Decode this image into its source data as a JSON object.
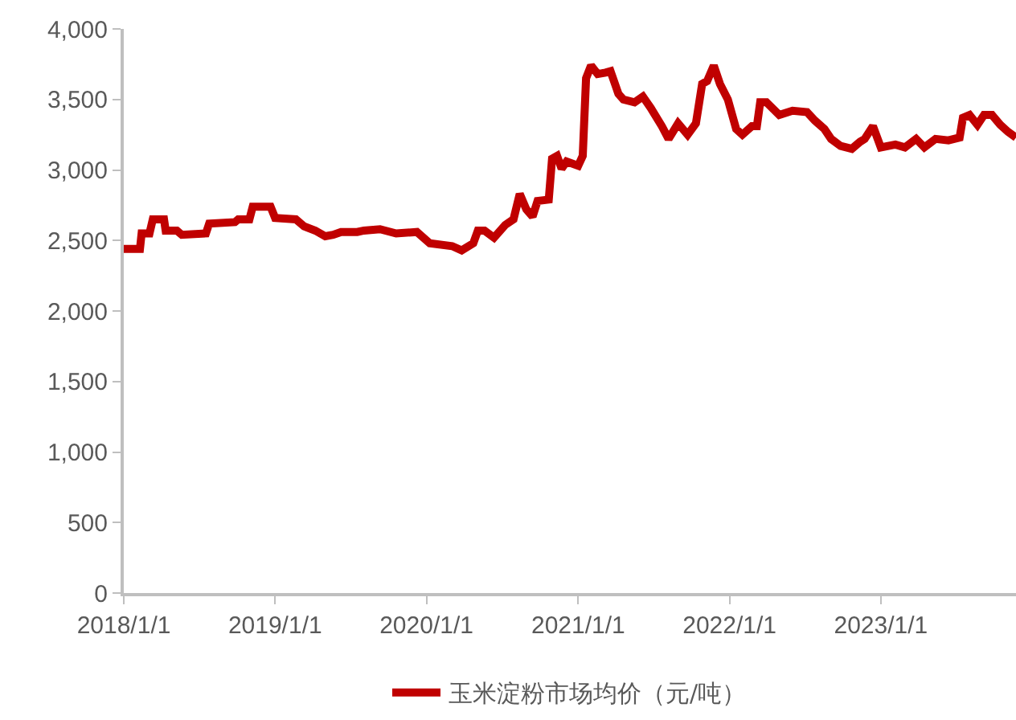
{
  "chart_data": {
    "type": "line",
    "legend": "bottom",
    "grid": false,
    "line_style": "solid",
    "marker": "none",
    "x": [
      "2018-01-01",
      "2018-02-09",
      "2018-02-13",
      "2018-03-04",
      "2018-03-12",
      "2018-04-08",
      "2018-04-12",
      "2018-05-09",
      "2018-05-21",
      "2018-07-18",
      "2018-07-26",
      "2018-09-26",
      "2018-10-04",
      "2018-10-31",
      "2018-11-08",
      "2018-12-21",
      "2019-01-01",
      "2019-02-20",
      "2019-03-12",
      "2019-04-08",
      "2019-05-02",
      "2019-05-21",
      "2019-06-09",
      "2019-07-18",
      "2019-08-03",
      "2019-09-11",
      "2019-10-20",
      "2019-12-09",
      "2020-01-09",
      "2020-03-03",
      "2020-03-26",
      "2020-04-23",
      "2020-05-04",
      "2020-05-20",
      "2020-06-12",
      "2020-07-09",
      "2020-07-29",
      "2020-08-13",
      "2020-08-29",
      "2020-09-13",
      "2020-09-25",
      "2020-10-22",
      "2020-10-30",
      "2020-11-11",
      "2020-11-22",
      "2020-12-04",
      "2021-01-01",
      "2021-01-12",
      "2021-01-20",
      "2021-02-01",
      "2021-02-17",
      "2021-03-08",
      "2021-03-20",
      "2021-04-08",
      "2021-04-20",
      "2021-05-17",
      "2021-06-06",
      "2021-06-25",
      "2021-07-22",
      "2021-08-07",
      "2021-08-30",
      "2021-09-22",
      "2021-10-12",
      "2021-10-27",
      "2021-11-08",
      "2021-11-24",
      "2021-12-09",
      "2021-12-28",
      "2022-01-17",
      "2022-02-01",
      "2022-02-24",
      "2022-03-08",
      "2022-03-16",
      "2022-03-31",
      "2022-05-01",
      "2022-06-02",
      "2022-07-07",
      "2022-07-26",
      "2022-08-18",
      "2022-09-03",
      "2022-09-26",
      "2022-10-23",
      "2022-11-12",
      "2022-11-23",
      "2022-12-13",
      "2023-01-01",
      "2023-02-05",
      "2023-02-28",
      "2023-03-27",
      "2023-04-16",
      "2023-05-13",
      "2023-06-13",
      "2023-07-10",
      "2023-07-18",
      "2023-08-03",
      "2023-08-22",
      "2023-09-07",
      "2023-09-26",
      "2023-10-16",
      "2023-11-04",
      "2023-11-23"
    ],
    "series": [
      {
        "name": "玉米淀粉市场均价（元/吨）",
        "color": "#c00000",
        "values": [
          2440,
          2440,
          2550,
          2550,
          2650,
          2650,
          2570,
          2570,
          2540,
          2550,
          2620,
          2630,
          2650,
          2650,
          2740,
          2740,
          2660,
          2650,
          2600,
          2570,
          2530,
          2540,
          2560,
          2560,
          2570,
          2580,
          2550,
          2560,
          2480,
          2460,
          2430,
          2480,
          2570,
          2570,
          2520,
          2610,
          2650,
          2830,
          2720,
          2670,
          2780,
          2790,
          3080,
          3100,
          3010,
          3060,
          3030,
          3100,
          3650,
          3740,
          3680,
          3690,
          3700,
          3540,
          3500,
          3480,
          3520,
          3440,
          3310,
          3220,
          3330,
          3250,
          3330,
          3610,
          3630,
          3740,
          3610,
          3500,
          3290,
          3250,
          3310,
          3310,
          3480,
          3480,
          3390,
          3420,
          3410,
          3350,
          3290,
          3220,
          3170,
          3150,
          3200,
          3220,
          3310,
          3160,
          3180,
          3160,
          3220,
          3160,
          3220,
          3210,
          3230,
          3370,
          3390,
          3320,
          3390,
          3390,
          3320,
          3270,
          3230
        ]
      }
    ],
    "xlim": [
      "2018-01-01",
      "2023-11-23"
    ],
    "xticks": [
      {
        "value": "2018-01-01",
        "label": "2018/1/1"
      },
      {
        "value": "2019-01-01",
        "label": "2019/1/1"
      },
      {
        "value": "2020-01-01",
        "label": "2020/1/1"
      },
      {
        "value": "2021-01-01",
        "label": "2021/1/1"
      },
      {
        "value": "2022-01-01",
        "label": "2022/1/1"
      },
      {
        "value": "2023-01-01",
        "label": "2023/1/1"
      }
    ],
    "ylim": [
      0,
      4000
    ],
    "yticks": [
      0,
      500,
      {
        "value": 1000,
        "label": "1,000"
      },
      {
        "value": 1500,
        "label": "1,500"
      },
      {
        "value": 2000,
        "label": "2,000"
      },
      {
        "value": 2500,
        "label": "2,500"
      },
      {
        "value": 3000,
        "label": "3,000"
      },
      {
        "value": 3500,
        "label": "3,500"
      },
      {
        "value": 4000,
        "label": "4,000"
      }
    ]
  }
}
